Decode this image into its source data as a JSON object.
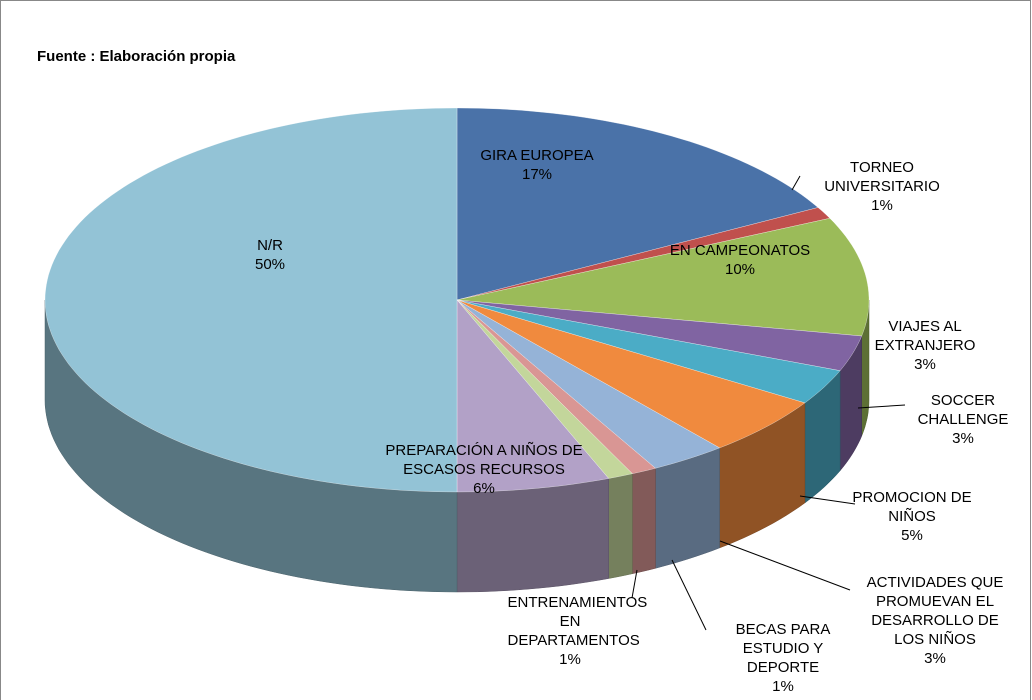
{
  "chart_data": {
    "type": "pie",
    "title": "Fuente : Elaboración propia",
    "categories": [
      "GIRA EUROPEA",
      "TORNEO UNIVERSITARIO",
      "EN CAMPEONATOS",
      "VIAJES AL EXTRANJERO",
      "SOCCER CHALLENGE",
      "PROMOCION DE NIÑOS",
      "ACTIVIDADES QUE PROMUEVAN EL DESARROLLO DE LOS NIÑOS",
      "BECAS PARA ESTUDIO Y DEPORTE",
      "ENTRENAMIENTOS EN DEPARTAMENTOS",
      "PREPARACIÓN A NIÑOS DE ESCASOS RECURSOS",
      "N/R"
    ],
    "values": [
      17,
      1,
      10,
      3,
      3,
      5,
      3,
      1,
      1,
      6,
      50
    ],
    "value_labels": [
      "17%",
      "1%",
      "10%",
      "3%",
      "3%",
      "5%",
      "3%",
      "1%",
      "1%",
      "6%",
      "50%"
    ],
    "colors": [
      "#4a72a8",
      "#c0504d",
      "#9bbb59",
      "#8064a2",
      "#4bacc6",
      "#f08a3e",
      "#95b3d7",
      "#d99694",
      "#c3d69b",
      "#b2a1c7",
      "#93c3d6"
    ]
  }
}
